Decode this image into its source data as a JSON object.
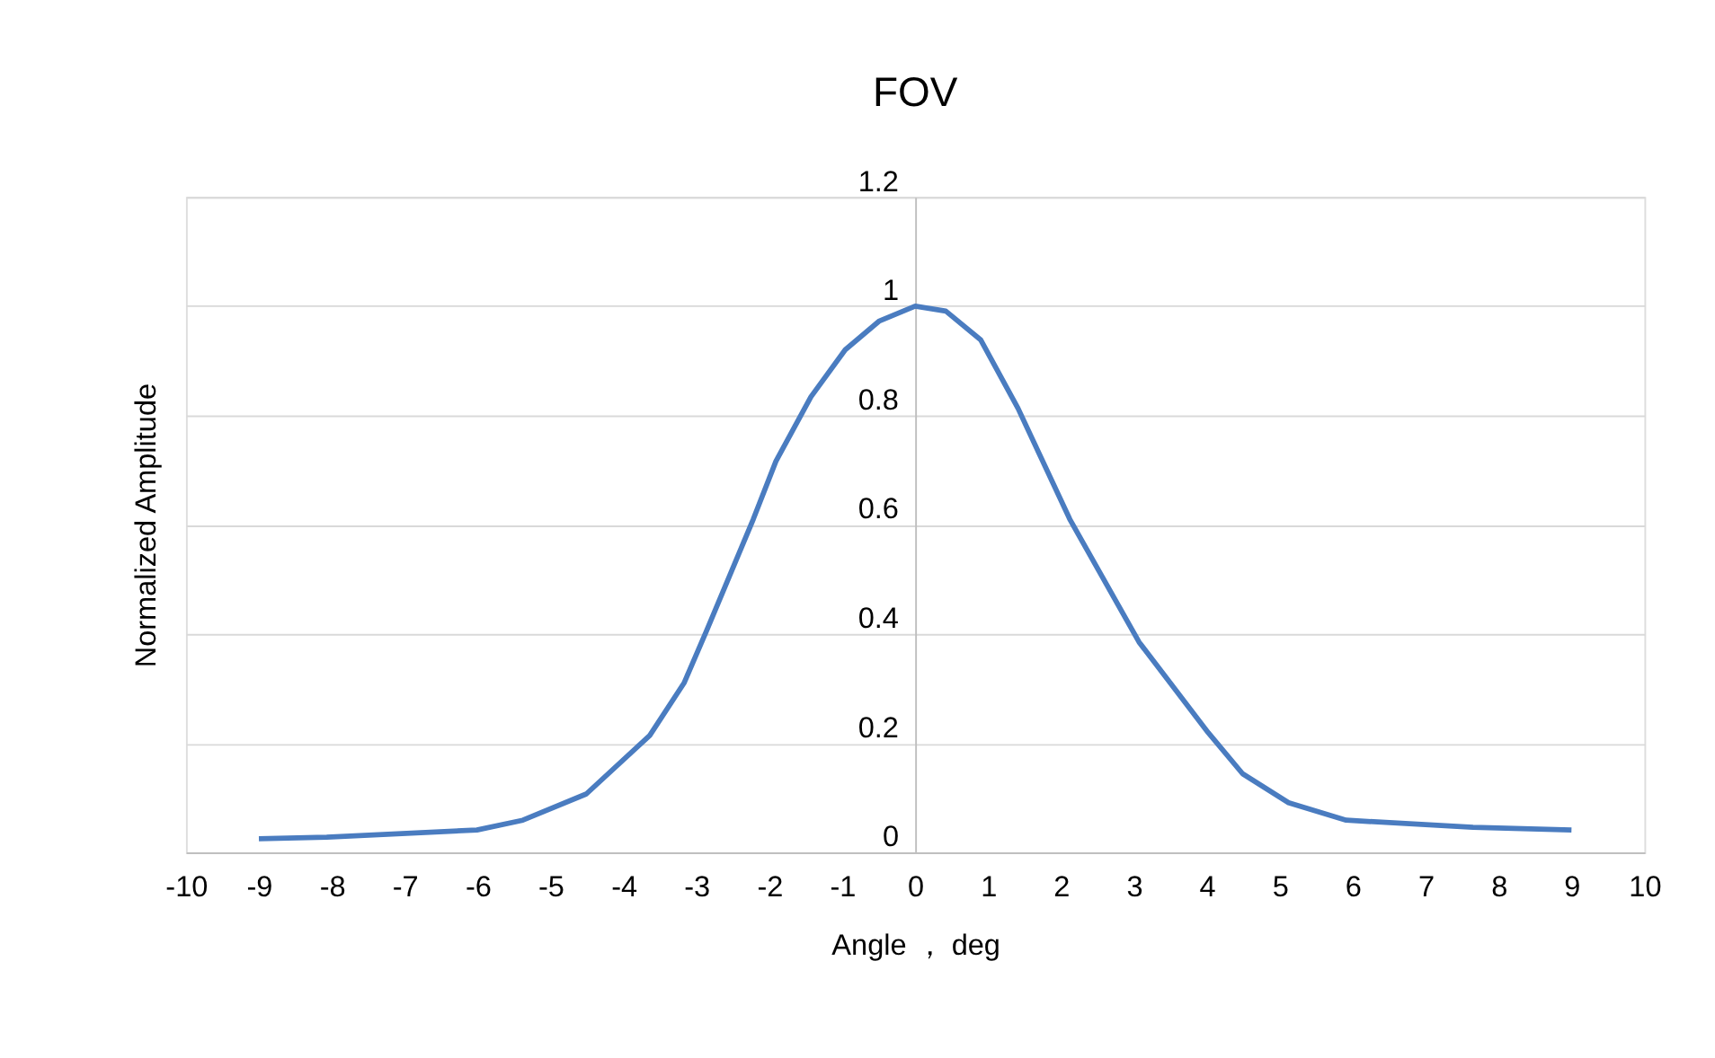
{
  "chart_data": {
    "type": "line",
    "title": "FOV",
    "xlabel": "Angle ， deg",
    "ylabel": "Normalized  Amplitude",
    "x": [
      -9,
      -8.07,
      -6.01,
      -5.38,
      -4.51,
      -3.64,
      -3.17,
      -2.86,
      -2.22,
      -1.91,
      -1.43,
      -0.96,
      -0.49,
      0,
      0.42,
      0.9,
      1.41,
      2.12,
      3.07,
      4.02,
      4.49,
      5.12,
      5.91,
      7.65,
      9
    ],
    "series": [
      {
        "color": "#4a7cc0",
        "values": [
          0.025,
          0.028,
          0.041,
          0.059,
          0.107,
          0.214,
          0.31,
          0.406,
          0.61,
          0.716,
          0.834,
          0.92,
          0.973,
          1.0,
          0.991,
          0.938,
          0.813,
          0.61,
          0.385,
          0.219,
          0.144,
          0.091,
          0.059,
          0.046,
          0.041
        ]
      }
    ],
    "xlim": [
      -10,
      10
    ],
    "xticks": [
      -10,
      -9,
      -8,
      -7,
      -6,
      -5,
      -4,
      -3,
      -2,
      -1,
      0,
      1,
      2,
      3,
      4,
      5,
      6,
      7,
      8,
      9,
      10
    ],
    "ylim": [
      0,
      1.2
    ],
    "yticks": [
      0,
      0.2,
      0.4,
      0.6,
      0.8,
      1,
      1.2
    ],
    "grid": "y"
  }
}
